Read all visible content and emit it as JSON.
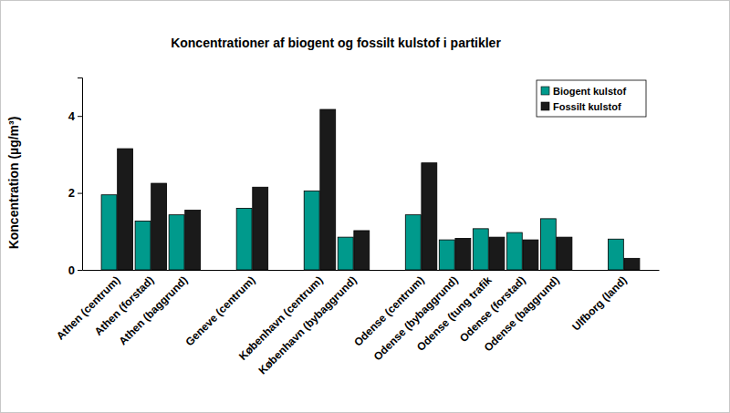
{
  "chart_data": {
    "type": "bar",
    "title": "Koncentrationer af biogent og fossilt kulstof i partikler",
    "y_label": "Koncentration (µg/m³)",
    "categories": [
      "Athen (centrum)",
      "Athen (forstad)",
      "Athen (baggrund)",
      null,
      "Geneve (centrum)",
      null,
      "København (centrum)",
      "København (bybaggrund)",
      null,
      "Odense (centrum)",
      "Odense (bybaggrund)",
      "Odense (tung trafik",
      "Odense (forstad)",
      "Odense (baggrund)",
      null,
      "Ulfborg (land)"
    ],
    "series": [
      {
        "name": "Biogent kulstof",
        "color": "#009a8c",
        "values": [
          1.95,
          1.27,
          1.43,
          null,
          1.6,
          null,
          2.05,
          0.85,
          null,
          1.43,
          0.78,
          1.07,
          0.97,
          1.33,
          null,
          0.8
        ]
      },
      {
        "name": "Fossilt kulstof",
        "color": "#1a1a1a",
        "values": [
          3.15,
          2.25,
          1.55,
          null,
          2.15,
          null,
          4.17,
          1.02,
          null,
          2.78,
          0.82,
          0.85,
          0.78,
          0.85,
          null,
          0.3
        ]
      }
    ],
    "ylim": [
      0,
      5
    ],
    "yticks": [
      0,
      2,
      4
    ],
    "grid": false,
    "legend": "upper right"
  }
}
